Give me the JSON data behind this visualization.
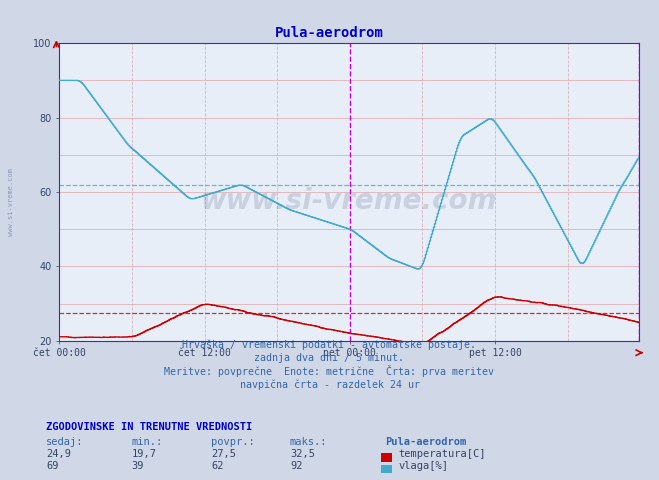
{
  "title": "Pula-aerodrom",
  "title_color": "#0000cc",
  "bg_color": "#d0d8e8",
  "plot_bg_color": "#e8eef8",
  "ylim": [
    20,
    100
  ],
  "yticks": [
    20,
    40,
    60,
    80,
    100
  ],
  "xlabel_times": [
    "čet 00:00",
    "čet 12:00",
    "pet 00:00",
    "pet 12:00"
  ],
  "temp_avg": 27.5,
  "humid_avg": 62,
  "temp_color": "#cc0000",
  "humid_color": "#44aacc",
  "vline_color": "#cc00cc",
  "watermark": "www.si-vreme.com",
  "footer_line1": "Hrvaška / vremenski podatki - avtomatske postaje.",
  "footer_line2": "zadnja dva dni / 5 minut.",
  "footer_line3": "Meritve: povprečne  Enote: metrične  Črta: prva meritev",
  "footer_line4": "navpična črta - razdelek 24 ur",
  "stats_header": "ZGODOVINSKE IN TRENUTNE VREDNOSTI",
  "col_headers": [
    "sedaj:",
    "min.:",
    "povpr.:",
    "maks.:"
  ],
  "temp_values": [
    "24,9",
    "19,7",
    "27,5",
    "32,5"
  ],
  "humid_values": [
    "69",
    "39",
    "62",
    "92"
  ],
  "legend_station": "Pula-aerodrom",
  "legend_temp": "temperatura[C]",
  "legend_humid": "vlaga[%]",
  "n_points": 576,
  "day_split": 288
}
